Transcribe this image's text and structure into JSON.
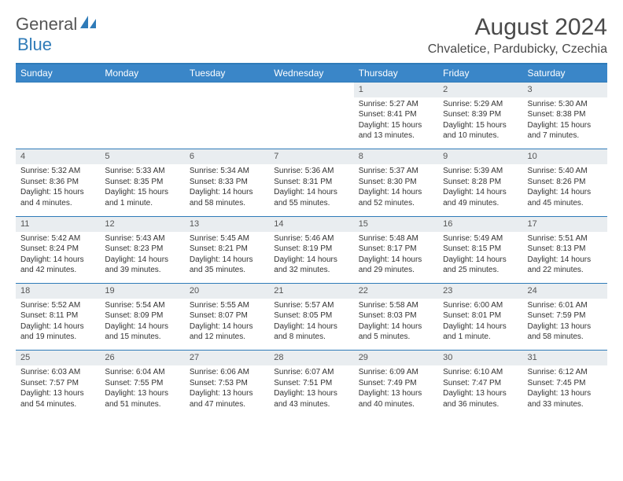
{
  "logo": {
    "text1": "General",
    "text2": "Blue"
  },
  "title": "August 2024",
  "location": "Chvaletice, Pardubicky, Czechia",
  "colors": {
    "header_bg": "#3a86c8",
    "header_border": "#2f7bb8",
    "daynum_bg": "#e9edf0",
    "text": "#333333"
  },
  "day_headers": [
    "Sunday",
    "Monday",
    "Tuesday",
    "Wednesday",
    "Thursday",
    "Friday",
    "Saturday"
  ],
  "weeks": [
    [
      null,
      null,
      null,
      null,
      {
        "n": "1",
        "sunrise": "Sunrise: 5:27 AM",
        "sunset": "Sunset: 8:41 PM",
        "d1": "Daylight: 15 hours",
        "d2": "and 13 minutes."
      },
      {
        "n": "2",
        "sunrise": "Sunrise: 5:29 AM",
        "sunset": "Sunset: 8:39 PM",
        "d1": "Daylight: 15 hours",
        "d2": "and 10 minutes."
      },
      {
        "n": "3",
        "sunrise": "Sunrise: 5:30 AM",
        "sunset": "Sunset: 8:38 PM",
        "d1": "Daylight: 15 hours",
        "d2": "and 7 minutes."
      }
    ],
    [
      {
        "n": "4",
        "sunrise": "Sunrise: 5:32 AM",
        "sunset": "Sunset: 8:36 PM",
        "d1": "Daylight: 15 hours",
        "d2": "and 4 minutes."
      },
      {
        "n": "5",
        "sunrise": "Sunrise: 5:33 AM",
        "sunset": "Sunset: 8:35 PM",
        "d1": "Daylight: 15 hours",
        "d2": "and 1 minute."
      },
      {
        "n": "6",
        "sunrise": "Sunrise: 5:34 AM",
        "sunset": "Sunset: 8:33 PM",
        "d1": "Daylight: 14 hours",
        "d2": "and 58 minutes."
      },
      {
        "n": "7",
        "sunrise": "Sunrise: 5:36 AM",
        "sunset": "Sunset: 8:31 PM",
        "d1": "Daylight: 14 hours",
        "d2": "and 55 minutes."
      },
      {
        "n": "8",
        "sunrise": "Sunrise: 5:37 AM",
        "sunset": "Sunset: 8:30 PM",
        "d1": "Daylight: 14 hours",
        "d2": "and 52 minutes."
      },
      {
        "n": "9",
        "sunrise": "Sunrise: 5:39 AM",
        "sunset": "Sunset: 8:28 PM",
        "d1": "Daylight: 14 hours",
        "d2": "and 49 minutes."
      },
      {
        "n": "10",
        "sunrise": "Sunrise: 5:40 AM",
        "sunset": "Sunset: 8:26 PM",
        "d1": "Daylight: 14 hours",
        "d2": "and 45 minutes."
      }
    ],
    [
      {
        "n": "11",
        "sunrise": "Sunrise: 5:42 AM",
        "sunset": "Sunset: 8:24 PM",
        "d1": "Daylight: 14 hours",
        "d2": "and 42 minutes."
      },
      {
        "n": "12",
        "sunrise": "Sunrise: 5:43 AM",
        "sunset": "Sunset: 8:23 PM",
        "d1": "Daylight: 14 hours",
        "d2": "and 39 minutes."
      },
      {
        "n": "13",
        "sunrise": "Sunrise: 5:45 AM",
        "sunset": "Sunset: 8:21 PM",
        "d1": "Daylight: 14 hours",
        "d2": "and 35 minutes."
      },
      {
        "n": "14",
        "sunrise": "Sunrise: 5:46 AM",
        "sunset": "Sunset: 8:19 PM",
        "d1": "Daylight: 14 hours",
        "d2": "and 32 minutes."
      },
      {
        "n": "15",
        "sunrise": "Sunrise: 5:48 AM",
        "sunset": "Sunset: 8:17 PM",
        "d1": "Daylight: 14 hours",
        "d2": "and 29 minutes."
      },
      {
        "n": "16",
        "sunrise": "Sunrise: 5:49 AM",
        "sunset": "Sunset: 8:15 PM",
        "d1": "Daylight: 14 hours",
        "d2": "and 25 minutes."
      },
      {
        "n": "17",
        "sunrise": "Sunrise: 5:51 AM",
        "sunset": "Sunset: 8:13 PM",
        "d1": "Daylight: 14 hours",
        "d2": "and 22 minutes."
      }
    ],
    [
      {
        "n": "18",
        "sunrise": "Sunrise: 5:52 AM",
        "sunset": "Sunset: 8:11 PM",
        "d1": "Daylight: 14 hours",
        "d2": "and 19 minutes."
      },
      {
        "n": "19",
        "sunrise": "Sunrise: 5:54 AM",
        "sunset": "Sunset: 8:09 PM",
        "d1": "Daylight: 14 hours",
        "d2": "and 15 minutes."
      },
      {
        "n": "20",
        "sunrise": "Sunrise: 5:55 AM",
        "sunset": "Sunset: 8:07 PM",
        "d1": "Daylight: 14 hours",
        "d2": "and 12 minutes."
      },
      {
        "n": "21",
        "sunrise": "Sunrise: 5:57 AM",
        "sunset": "Sunset: 8:05 PM",
        "d1": "Daylight: 14 hours",
        "d2": "and 8 minutes."
      },
      {
        "n": "22",
        "sunrise": "Sunrise: 5:58 AM",
        "sunset": "Sunset: 8:03 PM",
        "d1": "Daylight: 14 hours",
        "d2": "and 5 minutes."
      },
      {
        "n": "23",
        "sunrise": "Sunrise: 6:00 AM",
        "sunset": "Sunset: 8:01 PM",
        "d1": "Daylight: 14 hours",
        "d2": "and 1 minute."
      },
      {
        "n": "24",
        "sunrise": "Sunrise: 6:01 AM",
        "sunset": "Sunset: 7:59 PM",
        "d1": "Daylight: 13 hours",
        "d2": "and 58 minutes."
      }
    ],
    [
      {
        "n": "25",
        "sunrise": "Sunrise: 6:03 AM",
        "sunset": "Sunset: 7:57 PM",
        "d1": "Daylight: 13 hours",
        "d2": "and 54 minutes."
      },
      {
        "n": "26",
        "sunrise": "Sunrise: 6:04 AM",
        "sunset": "Sunset: 7:55 PM",
        "d1": "Daylight: 13 hours",
        "d2": "and 51 minutes."
      },
      {
        "n": "27",
        "sunrise": "Sunrise: 6:06 AM",
        "sunset": "Sunset: 7:53 PM",
        "d1": "Daylight: 13 hours",
        "d2": "and 47 minutes."
      },
      {
        "n": "28",
        "sunrise": "Sunrise: 6:07 AM",
        "sunset": "Sunset: 7:51 PM",
        "d1": "Daylight: 13 hours",
        "d2": "and 43 minutes."
      },
      {
        "n": "29",
        "sunrise": "Sunrise: 6:09 AM",
        "sunset": "Sunset: 7:49 PM",
        "d1": "Daylight: 13 hours",
        "d2": "and 40 minutes."
      },
      {
        "n": "30",
        "sunrise": "Sunrise: 6:10 AM",
        "sunset": "Sunset: 7:47 PM",
        "d1": "Daylight: 13 hours",
        "d2": "and 36 minutes."
      },
      {
        "n": "31",
        "sunrise": "Sunrise: 6:12 AM",
        "sunset": "Sunset: 7:45 PM",
        "d1": "Daylight: 13 hours",
        "d2": "and 33 minutes."
      }
    ]
  ]
}
